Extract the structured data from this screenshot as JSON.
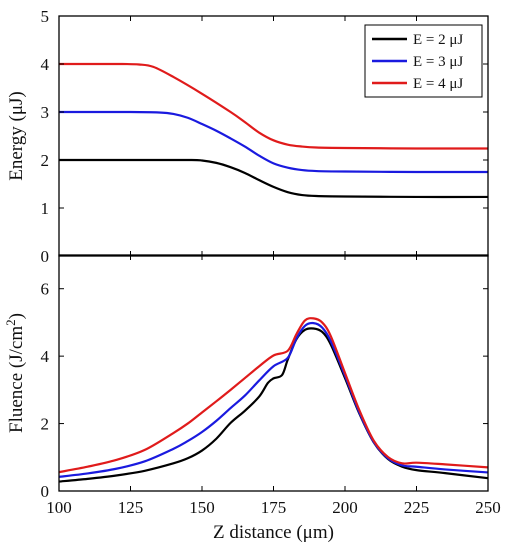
{
  "chart_data": [
    {
      "type": "line",
      "ylabel": "Energy (μJ)",
      "xlim": [
        100,
        250
      ],
      "ylim": [
        0,
        5
      ],
      "yticks": [
        0,
        1,
        2,
        3,
        4,
        5
      ],
      "legend_position": "top-right",
      "grid": false,
      "series": [
        {
          "name": "E = 2 μJ",
          "color": "#000000",
          "x": [
            100,
            125,
            145,
            150,
            155,
            160,
            165,
            170,
            175,
            180,
            185,
            190,
            200,
            225,
            250
          ],
          "y": [
            2.0,
            2.0,
            2.0,
            1.99,
            1.94,
            1.85,
            1.73,
            1.58,
            1.44,
            1.33,
            1.27,
            1.25,
            1.24,
            1.23,
            1.23
          ]
        },
        {
          "name": "E = 3 μJ",
          "color": "#1a1adf",
          "x": [
            100,
            125,
            135,
            140,
            145,
            150,
            155,
            160,
            165,
            170,
            175,
            180,
            185,
            190,
            200,
            225,
            250
          ],
          "y": [
            3.0,
            3.0,
            2.99,
            2.96,
            2.88,
            2.75,
            2.61,
            2.45,
            2.28,
            2.09,
            1.93,
            1.84,
            1.79,
            1.77,
            1.76,
            1.75,
            1.75
          ]
        },
        {
          "name": "E = 4 μJ",
          "color": "#e01b1b",
          "x": [
            100,
            120,
            128,
            133,
            140,
            150,
            160,
            165,
            170,
            175,
            180,
            185,
            190,
            200,
            225,
            250
          ],
          "y": [
            4.0,
            4.0,
            3.99,
            3.94,
            3.73,
            3.38,
            3.0,
            2.79,
            2.57,
            2.41,
            2.32,
            2.28,
            2.26,
            2.25,
            2.24,
            2.24
          ]
        }
      ]
    },
    {
      "type": "line",
      "xlabel": "Z distance (μm)",
      "ylabel_main": "Fluence (J/cm",
      "ylabel_sup": "2",
      "ylabel_tail": ")",
      "xlim": [
        100,
        250
      ],
      "ylim": [
        0,
        7
      ],
      "xticks": [
        100,
        125,
        150,
        175,
        200,
        225,
        250
      ],
      "yticks": [
        0,
        2,
        4,
        6
      ],
      "grid": false,
      "series": [
        {
          "name": "E = 2 μJ",
          "color": "#000000",
          "x": [
            100,
            110,
            120,
            130,
            140,
            145,
            150,
            155,
            160,
            165,
            170,
            173,
            175,
            178,
            180,
            183,
            186,
            189,
            192,
            195,
            200,
            205,
            210,
            215,
            220,
            225,
            235,
            250
          ],
          "y": [
            0.28,
            0.36,
            0.46,
            0.6,
            0.82,
            0.97,
            1.2,
            1.55,
            2.02,
            2.38,
            2.8,
            3.2,
            3.34,
            3.44,
            3.9,
            4.5,
            4.78,
            4.82,
            4.72,
            4.35,
            3.35,
            2.3,
            1.45,
            0.95,
            0.72,
            0.62,
            0.53,
            0.38
          ]
        },
        {
          "name": "E = 3 μJ",
          "color": "#1a1adf",
          "x": [
            100,
            110,
            120,
            130,
            140,
            145,
            150,
            155,
            160,
            165,
            170,
            175,
            180,
            183,
            186,
            189,
            192,
            195,
            200,
            205,
            210,
            215,
            220,
            225,
            235,
            250
          ],
          "y": [
            0.42,
            0.52,
            0.66,
            0.88,
            1.25,
            1.48,
            1.75,
            2.08,
            2.46,
            2.83,
            3.28,
            3.7,
            3.95,
            4.52,
            4.9,
            4.98,
            4.85,
            4.45,
            3.42,
            2.33,
            1.46,
            0.97,
            0.76,
            0.72,
            0.64,
            0.55
          ]
        },
        {
          "name": "E = 4 μJ",
          "color": "#e01b1b",
          "x": [
            100,
            110,
            120,
            130,
            140,
            145,
            150,
            155,
            160,
            165,
            170,
            175,
            180,
            183,
            186,
            189,
            192,
            195,
            200,
            205,
            210,
            215,
            220,
            225,
            235,
            250
          ],
          "y": [
            0.56,
            0.72,
            0.92,
            1.22,
            1.72,
            2.0,
            2.33,
            2.66,
            3.0,
            3.35,
            3.7,
            4.02,
            4.16,
            4.65,
            5.06,
            5.12,
            5.0,
            4.6,
            3.5,
            2.4,
            1.5,
            1.01,
            0.82,
            0.84,
            0.79,
            0.7
          ]
        }
      ]
    }
  ]
}
